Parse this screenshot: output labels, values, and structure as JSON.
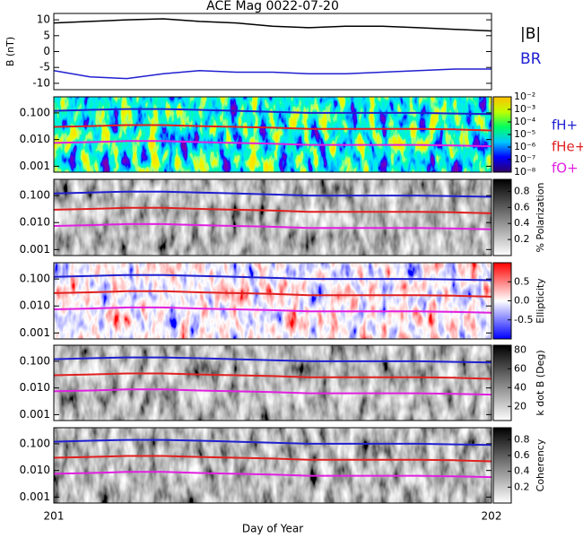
{
  "chart_data": [
    {
      "type": "line",
      "title": "ACE Mag 0022-07-20",
      "ylabel": "B (nT)",
      "x": [
        201,
        201.083,
        201.167,
        201.25,
        201.333,
        201.417,
        201.5,
        201.583,
        201.667,
        201.75,
        201.833,
        201.917,
        202
      ],
      "xlim": [
        201,
        202
      ],
      "ylim": [
        -12,
        12
      ],
      "yticks": [
        10,
        5,
        0,
        -5,
        -10
      ],
      "series": [
        {
          "name": "|B|",
          "color": "#000000",
          "values": [
            9,
            9.5,
            10,
            10.3,
            9.5,
            9,
            8,
            7.5,
            8,
            8,
            7.5,
            7,
            6.5
          ]
        },
        {
          "name": "BR",
          "color": "#2020d0",
          "values": [
            -6,
            -8,
            -8.5,
            -7,
            -6,
            -6.5,
            -6.5,
            -7,
            -7,
            -6.5,
            -6,
            -5.5,
            -5.5
          ]
        }
      ]
    },
    {
      "type": "spectrogram",
      "ylog": true,
      "ylim": [
        0.0006,
        0.4
      ],
      "yticks": [
        {
          "value": 0.1,
          "label": "0.100"
        },
        {
          "value": 0.01,
          "label": "0.010"
        },
        {
          "value": 0.001,
          "label": "0.001"
        }
      ],
      "x": [
        201,
        201.083,
        201.167,
        201.25,
        201.333,
        201.417,
        201.5,
        201.583,
        201.667,
        201.75,
        201.833,
        201.917,
        202
      ],
      "xlim": [
        201,
        202
      ],
      "colormap": [
        "#30006a",
        "#0000ff",
        "#00c8ff",
        "#00ff60",
        "#c0ff00",
        "#ffc000"
      ],
      "clog": true,
      "clim": [
        1e-08,
        0.01
      ],
      "cticks": [
        {
          "value": 0.01,
          "label": "10⁻²"
        },
        {
          "value": 0.001,
          "label": "10⁻³"
        },
        {
          "value": 0.0001,
          "label": "10⁻⁴"
        },
        {
          "value": 1e-05,
          "label": "10⁻⁵"
        },
        {
          "value": 1e-06,
          "label": "10⁻⁶"
        },
        {
          "value": 1e-07,
          "label": "10⁻⁷"
        },
        {
          "value": 1e-08,
          "label": "10⁻⁸"
        }
      ],
      "series": [
        {
          "name": "fH+",
          "color": "#2020d0",
          "values": [
            0.12,
            0.13,
            0.14,
            0.14,
            0.13,
            0.12,
            0.11,
            0.1,
            0.1,
            0.1,
            0.1,
            0.095,
            0.09
          ]
        },
        {
          "name": "fHe+",
          "color": "#e02020",
          "values": [
            0.03,
            0.032,
            0.035,
            0.035,
            0.032,
            0.03,
            0.028,
            0.025,
            0.025,
            0.025,
            0.025,
            0.024,
            0.022
          ]
        },
        {
          "name": "fO+",
          "color": "#e020e0",
          "values": [
            0.0075,
            0.008,
            0.0088,
            0.0088,
            0.008,
            0.0075,
            0.007,
            0.0063,
            0.0063,
            0.0063,
            0.0063,
            0.006,
            0.0056
          ]
        }
      ]
    },
    {
      "type": "spectrogram",
      "ylog": true,
      "ylim": [
        0.0006,
        0.4
      ],
      "yticks": [
        {
          "value": 0.1,
          "label": "0.100"
        },
        {
          "value": 0.01,
          "label": "0.010"
        },
        {
          "value": 0.001,
          "label": "0.001"
        }
      ],
      "x": [
        201,
        201.083,
        201.167,
        201.25,
        201.333,
        201.417,
        201.5,
        201.583,
        201.667,
        201.75,
        201.833,
        201.917,
        202
      ],
      "xlim": [
        201,
        202
      ],
      "colormap": [
        "#ffffff",
        "#000000"
      ],
      "clabel": "% Polarization",
      "clim": [
        0,
        0.95
      ],
      "cticks": [
        0.2,
        0.4,
        0.6,
        0.8
      ],
      "series": [
        {
          "color": "#2020d0",
          "values": [
            0.12,
            0.13,
            0.14,
            0.14,
            0.13,
            0.12,
            0.11,
            0.1,
            0.1,
            0.1,
            0.1,
            0.095,
            0.09
          ]
        },
        {
          "color": "#e02020",
          "values": [
            0.03,
            0.032,
            0.035,
            0.035,
            0.032,
            0.03,
            0.028,
            0.025,
            0.025,
            0.025,
            0.025,
            0.024,
            0.022
          ]
        },
        {
          "color": "#e020e0",
          "values": [
            0.0075,
            0.008,
            0.0088,
            0.0088,
            0.008,
            0.0075,
            0.007,
            0.0063,
            0.0063,
            0.0063,
            0.0063,
            0.006,
            0.0056
          ]
        }
      ]
    },
    {
      "type": "spectrogram",
      "ylog": true,
      "ylim": [
        0.0006,
        0.4
      ],
      "yticks": [
        {
          "value": 0.1,
          "label": "0.100"
        },
        {
          "value": 0.01,
          "label": "0.010"
        },
        {
          "value": 0.001,
          "label": "0.001"
        }
      ],
      "x": [
        201,
        201.083,
        201.167,
        201.25,
        201.333,
        201.417,
        201.5,
        201.583,
        201.667,
        201.75,
        201.833,
        201.917,
        202
      ],
      "xlim": [
        201,
        202
      ],
      "colormap": [
        "#0000ff",
        "#ffffff",
        "#ff0000"
      ],
      "clabel": "Ellipticity",
      "clim": [
        -1,
        1
      ],
      "cticks": [
        0.5,
        {
          "value": 0,
          "label": "0.0"
        },
        -0.5
      ],
      "series": [
        {
          "color": "#2020d0",
          "values": [
            0.12,
            0.13,
            0.14,
            0.14,
            0.13,
            0.12,
            0.11,
            0.1,
            0.1,
            0.1,
            0.1,
            0.095,
            0.09
          ]
        },
        {
          "color": "#e02020",
          "values": [
            0.03,
            0.032,
            0.035,
            0.035,
            0.032,
            0.03,
            0.028,
            0.025,
            0.025,
            0.025,
            0.025,
            0.024,
            0.022
          ]
        },
        {
          "color": "#e020e0",
          "values": [
            0.0075,
            0.008,
            0.0088,
            0.0088,
            0.008,
            0.0075,
            0.007,
            0.0063,
            0.0063,
            0.0063,
            0.0063,
            0.006,
            0.0056
          ]
        }
      ]
    },
    {
      "type": "spectrogram",
      "ylog": true,
      "ylim": [
        0.0006,
        0.4
      ],
      "yticks": [
        {
          "value": 0.1,
          "label": "0.100"
        },
        {
          "value": 0.01,
          "label": "0.010"
        },
        {
          "value": 0.001,
          "label": "0.001"
        }
      ],
      "x": [
        201,
        201.083,
        201.167,
        201.25,
        201.333,
        201.417,
        201.5,
        201.583,
        201.667,
        201.75,
        201.833,
        201.917,
        202
      ],
      "xlim": [
        201,
        202
      ],
      "colormap": [
        "#ffffff",
        "#000000"
      ],
      "clabel": "k dot B (Deg)",
      "clim": [
        5,
        85
      ],
      "cticks": [
        20,
        40,
        60,
        80
      ],
      "series": [
        {
          "color": "#2020d0",
          "values": [
            0.12,
            0.13,
            0.14,
            0.14,
            0.13,
            0.12,
            0.11,
            0.1,
            0.1,
            0.1,
            0.1,
            0.095,
            0.09
          ]
        },
        {
          "color": "#e02020",
          "values": [
            0.03,
            0.032,
            0.035,
            0.035,
            0.032,
            0.03,
            0.028,
            0.025,
            0.025,
            0.025,
            0.025,
            0.024,
            0.022
          ]
        },
        {
          "color": "#e020e0",
          "values": [
            0.0075,
            0.008,
            0.0088,
            0.0088,
            0.008,
            0.0075,
            0.007,
            0.0063,
            0.0063,
            0.0063,
            0.0063,
            0.006,
            0.0056
          ]
        }
      ]
    },
    {
      "type": "spectrogram",
      "ylog": true,
      "ylim": [
        0.0006,
        0.4
      ],
      "yticks": [
        {
          "value": 0.1,
          "label": "0.100"
        },
        {
          "value": 0.01,
          "label": "0.010"
        },
        {
          "value": 0.001,
          "label": "0.001"
        }
      ],
      "x": [
        201,
        201.083,
        201.167,
        201.25,
        201.333,
        201.417,
        201.5,
        201.583,
        201.667,
        201.75,
        201.833,
        201.917,
        202
      ],
      "xlim": [
        201,
        202
      ],
      "xticks": [
        201,
        202
      ],
      "xlabel": "Day of Year",
      "colormap": [
        "#ffffff",
        "#000000"
      ],
      "clabel": "Coherency",
      "clim": [
        0,
        0.95
      ],
      "cticks": [
        0.2,
        0.4,
        0.6,
        0.8
      ],
      "series": [
        {
          "color": "#2020d0",
          "values": [
            0.12,
            0.13,
            0.14,
            0.14,
            0.13,
            0.12,
            0.11,
            0.1,
            0.1,
            0.1,
            0.1,
            0.095,
            0.09
          ]
        },
        {
          "color": "#e02020",
          "values": [
            0.03,
            0.032,
            0.035,
            0.035,
            0.032,
            0.03,
            0.028,
            0.025,
            0.025,
            0.025,
            0.025,
            0.024,
            0.022
          ]
        },
        {
          "color": "#e020e0",
          "values": [
            0.0075,
            0.008,
            0.0088,
            0.0088,
            0.008,
            0.0075,
            0.007,
            0.0063,
            0.0063,
            0.0063,
            0.0063,
            0.006,
            0.0056
          ]
        }
      ]
    }
  ]
}
